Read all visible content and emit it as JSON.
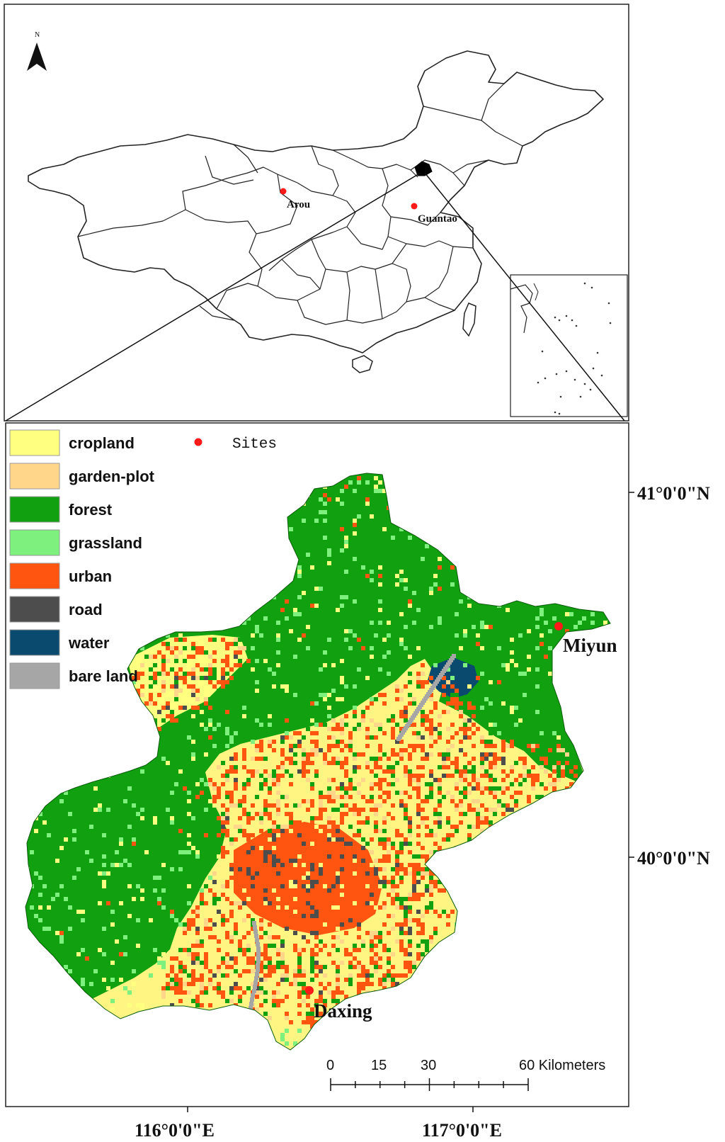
{
  "overview_map": {
    "north_label": "N",
    "sites": [
      {
        "name": "Arou"
      },
      {
        "name": "Guantao"
      }
    ]
  },
  "detail_map": {
    "legend": {
      "items": [
        {
          "label": "cropland",
          "color": "#ffff80"
        },
        {
          "label": "garden-plot",
          "color": "#ffd68a"
        },
        {
          "label": "forest",
          "color": "#11a00f"
        },
        {
          "label": "grassland",
          "color": "#7df07d"
        },
        {
          "label": "urban",
          "color": "#ff5511"
        },
        {
          "label": "road",
          "color": "#4d4d4d"
        },
        {
          "label": "water",
          "color": "#0b4a6f"
        },
        {
          "label": "bare land",
          "color": "#a6a6a6"
        }
      ],
      "sites_label": "Sites",
      "sites_color": "#ff1a1a"
    },
    "sites": [
      {
        "name": "Miyun"
      },
      {
        "name": "Daxing"
      }
    ],
    "lat_labels": [
      "41°0'0\"N",
      "40°0'0\"N"
    ],
    "lon_labels": [
      "116°0'0\"E",
      "117°0'0\"E"
    ],
    "scale_bar": {
      "ticks": [
        "0",
        "15",
        "30",
        "60 Kilometers"
      ]
    }
  }
}
